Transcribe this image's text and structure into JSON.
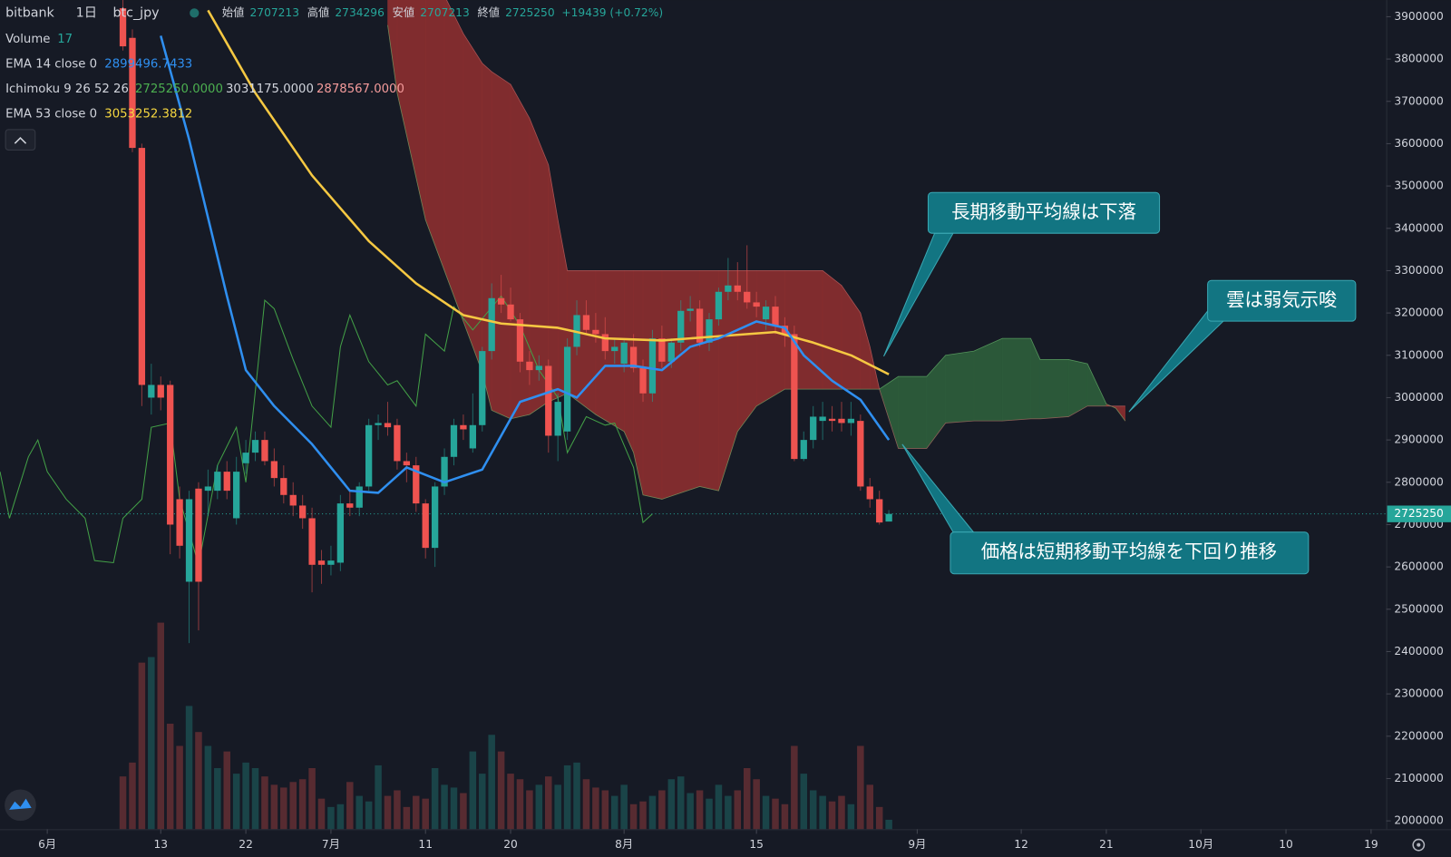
{
  "header": {
    "symbol": "bitbank",
    "interval": "1日",
    "pair": "btc_jpy",
    "open_label": "始値",
    "high_label": "高値",
    "low_label": "安値",
    "close_label": "終値",
    "change": "+19439 (+0.72%)"
  },
  "chart_data": {
    "type": "candlestick",
    "ylim": [
      2000000,
      3900000
    ],
    "yticks": [
      2000000,
      2100000,
      2200000,
      2300000,
      2400000,
      2500000,
      2600000,
      2700000,
      2800000,
      2900000,
      3000000,
      3100000,
      3200000,
      3300000,
      3400000,
      3500000,
      3600000,
      3700000,
      3800000,
      3900000
    ],
    "xlim": [
      -5,
      141.6
    ],
    "xticks": [
      {
        "value": 0,
        "label": "6月"
      },
      {
        "value": 12,
        "label": "13"
      },
      {
        "value": 21,
        "label": "22"
      },
      {
        "value": 30,
        "label": "7月"
      },
      {
        "value": 40,
        "label": "11"
      },
      {
        "value": 49,
        "label": "20"
      },
      {
        "value": 61,
        "label": "8月"
      },
      {
        "value": 75,
        "label": "15"
      },
      {
        "value": 92,
        "label": "9月"
      },
      {
        "value": 103,
        "label": "12"
      },
      {
        "value": 112,
        "label": "21"
      },
      {
        "value": 122,
        "label": "10月"
      },
      {
        "value": 131,
        "label": "10"
      },
      {
        "value": 140,
        "label": "19"
      }
    ],
    "up_color": "#26a69a",
    "down_color": "#ef5350",
    "x": [
      8,
      9,
      10,
      11,
      12,
      13,
      14,
      15,
      16,
      17,
      18,
      19,
      20,
      21,
      22,
      23,
      24,
      25,
      26,
      27,
      28,
      29,
      30,
      31,
      32,
      33,
      34,
      35,
      36,
      37,
      38,
      39,
      40,
      41,
      42,
      43,
      44,
      45,
      46,
      47,
      48,
      49,
      50,
      51,
      52,
      53,
      54,
      55,
      56,
      57,
      58,
      59,
      60,
      61,
      62,
      63,
      64,
      65,
      66,
      67,
      68,
      69,
      70,
      71,
      72,
      73,
      74,
      75,
      76,
      77,
      78,
      79,
      80,
      81,
      82,
      83,
      84,
      85,
      86,
      87,
      88,
      89
    ],
    "candles": [
      [
        3920000,
        3950000,
        3820000,
        3830000
      ],
      [
        3850000,
        3870000,
        3580000,
        3590000
      ],
      [
        3590000,
        3600000,
        2980000,
        3030000
      ],
      [
        3000000,
        3080000,
        2960000,
        3030000
      ],
      [
        3030000,
        3050000,
        2970000,
        3000000
      ],
      [
        3030000,
        3040000,
        2630000,
        2700000
      ],
      [
        2760000,
        2790000,
        2620000,
        2650000
      ],
      [
        2565000,
        2780000,
        2420000,
        2760000
      ],
      [
        2785000,
        2800000,
        2450000,
        2565000
      ],
      [
        2780000,
        2830000,
        2720000,
        2790000
      ],
      [
        2780000,
        2840000,
        2760000,
        2825000
      ],
      [
        2825000,
        2850000,
        2760000,
        2780000
      ],
      [
        2715000,
        2860000,
        2700000,
        2825000
      ],
      [
        2845000,
        2900000,
        2820000,
        2870000
      ],
      [
        2870000,
        2920000,
        2850000,
        2900000
      ],
      [
        2900000,
        2920000,
        2840000,
        2850000
      ],
      [
        2850000,
        2880000,
        2790000,
        2810000
      ],
      [
        2810000,
        2840000,
        2750000,
        2770000
      ],
      [
        2770000,
        2800000,
        2720000,
        2745000
      ],
      [
        2745000,
        2770000,
        2690000,
        2715000
      ],
      [
        2715000,
        2740000,
        2540000,
        2605000
      ],
      [
        2615000,
        2640000,
        2560000,
        2605000
      ],
      [
        2605000,
        2650000,
        2580000,
        2615000
      ],
      [
        2610000,
        2770000,
        2590000,
        2750000
      ],
      [
        2750000,
        2780000,
        2720000,
        2740000
      ],
      [
        2740000,
        2800000,
        2720000,
        2790000
      ],
      [
        2790000,
        2950000,
        2780000,
        2935000
      ],
      [
        2935000,
        2960000,
        2900000,
        2940000
      ],
      [
        2940000,
        2990000,
        2910000,
        2930000
      ],
      [
        2935000,
        2950000,
        2830000,
        2850000
      ],
      [
        2850000,
        2870000,
        2800000,
        2840000
      ],
      [
        2840000,
        2860000,
        2730000,
        2750000
      ],
      [
        2750000,
        2760000,
        2620000,
        2645000
      ],
      [
        2645000,
        2800000,
        2600000,
        2790000
      ],
      [
        2790000,
        2880000,
        2770000,
        2860000
      ],
      [
        2860000,
        2950000,
        2840000,
        2935000
      ],
      [
        2935000,
        2960000,
        2900000,
        2925000
      ],
      [
        2880000,
        3010000,
        2870000,
        2935000
      ],
      [
        2935000,
        3120000,
        2920000,
        3110000
      ],
      [
        3110000,
        3270000,
        3090000,
        3235000
      ],
      [
        3235000,
        3290000,
        3200000,
        3220000
      ],
      [
        3220000,
        3260000,
        3180000,
        3185000
      ],
      [
        3185000,
        3200000,
        3060000,
        3085000
      ],
      [
        3085000,
        3110000,
        3030000,
        3065000
      ],
      [
        3065000,
        3100000,
        3040000,
        3075000
      ],
      [
        3075000,
        3090000,
        2870000,
        2910000
      ],
      [
        2910000,
        3010000,
        2850000,
        2990000
      ],
      [
        2920000,
        3140000,
        2900000,
        3120000
      ],
      [
        3120000,
        3230000,
        3100000,
        3195000
      ],
      [
        3195000,
        3230000,
        3150000,
        3160000
      ],
      [
        3160000,
        3200000,
        3130000,
        3150000
      ],
      [
        3150000,
        3190000,
        3090000,
        3110000
      ],
      [
        3110000,
        3140000,
        3080000,
        3120000
      ],
      [
        3080000,
        3140000,
        3060000,
        3130000
      ],
      [
        3120000,
        3150000,
        3060000,
        3070000
      ],
      [
        3070000,
        3090000,
        2990000,
        3010000
      ],
      [
        3010000,
        3160000,
        2990000,
        3140000
      ],
      [
        3140000,
        3170000,
        3070000,
        3085000
      ],
      [
        3085000,
        3140000,
        3070000,
        3130000
      ],
      [
        3130000,
        3230000,
        3110000,
        3205000
      ],
      [
        3205000,
        3240000,
        3180000,
        3210000
      ],
      [
        3210000,
        3230000,
        3120000,
        3130000
      ],
      [
        3130000,
        3200000,
        3110000,
        3185000
      ],
      [
        3185000,
        3260000,
        3170000,
        3250000
      ],
      [
        3250000,
        3330000,
        3230000,
        3265000
      ],
      [
        3265000,
        3320000,
        3230000,
        3250000
      ],
      [
        3250000,
        3360000,
        3210000,
        3225000
      ],
      [
        3225000,
        3250000,
        3190000,
        3215000
      ],
      [
        3185000,
        3230000,
        3160000,
        3215000
      ],
      [
        3215000,
        3240000,
        3150000,
        3170000
      ],
      [
        3170000,
        3190000,
        3120000,
        3150000
      ],
      [
        3150000,
        3170000,
        2850000,
        2855000
      ],
      [
        2855000,
        2920000,
        2850000,
        2900000
      ],
      [
        2900000,
        2980000,
        2880000,
        2955000
      ],
      [
        2945000,
        2990000,
        2900000,
        2955000
      ],
      [
        2950000,
        2980000,
        2920000,
        2945000
      ],
      [
        2950000,
        2990000,
        2920000,
        2940000
      ],
      [
        2940000,
        2990000,
        2910000,
        2950000
      ],
      [
        2945000,
        2960000,
        2780000,
        2790000
      ],
      [
        2790000,
        2810000,
        2740000,
        2760000
      ],
      [
        2760000,
        2780000,
        2700000,
        2705000
      ],
      [
        2707213,
        2734296,
        2707213,
        2725250
      ]
    ],
    "volume_name": "Volume",
    "volume_ylim": [
      0,
      1000
    ],
    "volumes": [
      95,
      120,
      300,
      310,
      372,
      190,
      150,
      222,
      175,
      150,
      110,
      140,
      100,
      120,
      110,
      95,
      80,
      75,
      85,
      90,
      110,
      55,
      40,
      45,
      85,
      60,
      50,
      115,
      60,
      70,
      40,
      60,
      55,
      110,
      80,
      75,
      65,
      140,
      100,
      170,
      140,
      100,
      90,
      70,
      80,
      95,
      80,
      115,
      120,
      90,
      75,
      70,
      60,
      80,
      45,
      50,
      60,
      70,
      90,
      95,
      65,
      70,
      55,
      80,
      60,
      70,
      110,
      90,
      60,
      55,
      45,
      150,
      100,
      70,
      60,
      50,
      60,
      45,
      150,
      80,
      40,
      17
    ],
    "ema14": {
      "name": "EMA 14 close 0",
      "value_label": "2899496.7433",
      "color": "#2f8ff0",
      "x": [
        12,
        15,
        19,
        21,
        24,
        28,
        32,
        35,
        38,
        42,
        46,
        48,
        50,
        54,
        56,
        59,
        62,
        65,
        68,
        71,
        75,
        78,
        80,
        83,
        86,
        89
      ],
      "values": [
        3855000,
        3610000,
        3240000,
        3065000,
        2980000,
        2890000,
        2780000,
        2775000,
        2835000,
        2800000,
        2830000,
        2910000,
        2990000,
        3020000,
        3000000,
        3075000,
        3075000,
        3065000,
        3120000,
        3140000,
        3180000,
        3165000,
        3100000,
        3040000,
        2995000,
        2900000
      ]
    },
    "ema53": {
      "name": "EMA 53 close 0",
      "value_label": "3053252.3812",
      "color": "#f5c842",
      "x": [
        17,
        22,
        28,
        34,
        39,
        44,
        48,
        54,
        59,
        65,
        71,
        77,
        81,
        85,
        89
      ],
      "values": [
        3915000,
        3720000,
        3525000,
        3370000,
        3270000,
        3195000,
        3175000,
        3165000,
        3140000,
        3135000,
        3145000,
        3155000,
        3130000,
        3100000,
        3055000
      ]
    },
    "ichimoku": {
      "name": "Ichimoku 9 26 52 26",
      "value_labels": [
        "2725250.0000",
        "3031175.0000",
        "2878567.0000"
      ],
      "lagging": {
        "color": "#43a047",
        "x": [
          -5,
          -4,
          -2,
          -1,
          0,
          2,
          4,
          5,
          7,
          8,
          10,
          11,
          13,
          14,
          16,
          18,
          20,
          21,
          23,
          24,
          26,
          28,
          30,
          31,
          32,
          34,
          36,
          37,
          39,
          40,
          42,
          43,
          45,
          48,
          50,
          52,
          54,
          55,
          57,
          59,
          60,
          62,
          63,
          64
        ],
        "values": [
          2825000,
          2715000,
          2860000,
          2900000,
          2825000,
          2760000,
          2715000,
          2615000,
          2610000,
          2715000,
          2760000,
          2930000,
          2940000,
          2760000,
          2605000,
          2840000,
          2930000,
          2800000,
          3230000,
          3210000,
          3090000,
          2980000,
          2930000,
          3120000,
          3195000,
          3085000,
          3030000,
          3040000,
          2980000,
          3150000,
          3110000,
          3215000,
          3160000,
          3240000,
          3170000,
          3065000,
          3000000,
          2870000,
          2955000,
          2935000,
          2940000,
          2835000,
          2705000,
          2725250
        ]
      },
      "cloud": {
        "bull_color": "#2e5f3c",
        "bear_color": "#8c2f2f",
        "x": [
          36,
          37,
          40,
          42,
          44,
          46,
          47,
          49,
          51,
          53,
          54,
          55,
          58,
          61,
          62,
          63,
          65,
          69,
          71,
          73,
          75,
          78,
          82,
          84,
          86,
          87,
          88,
          90,
          93,
          95,
          98,
          101,
          104,
          105,
          108,
          110,
          112,
          113,
          114
        ],
        "span_a": [
          3880000,
          3720000,
          3420000,
          3300000,
          3180000,
          3060000,
          2970000,
          2950000,
          2960000,
          2990000,
          3000000,
          3010000,
          2960000,
          2920000,
          2870000,
          2770000,
          2760000,
          2790000,
          2780000,
          2920000,
          2980000,
          3020000,
          3020000,
          3020000,
          3020000,
          3020000,
          3020000,
          3050000,
          3050000,
          3100000,
          3110000,
          3140000,
          3140000,
          3090000,
          3090000,
          3080000,
          2985000,
          2975000,
          2945000
        ],
        "span_b": [
          3950000,
          3950000,
          3950000,
          3950000,
          3860000,
          3790000,
          3770000,
          3740000,
          3660000,
          3550000,
          3420000,
          3300000,
          3300000,
          3300000,
          3300000,
          3300000,
          3300000,
          3300000,
          3300000,
          3300000,
          3300000,
          3300000,
          3300000,
          3265000,
          3200000,
          3120000,
          3020000,
          2880000,
          2880000,
          2940000,
          2945000,
          2945000,
          2950000,
          2950000,
          2955000,
          2980000,
          2980000,
          2980000,
          2980000
        ]
      }
    },
    "annotations": [
      "長期移動平均線は下落",
      "雲は弱気示唆",
      "価格は短期移動平均線を下回り推移"
    ]
  }
}
